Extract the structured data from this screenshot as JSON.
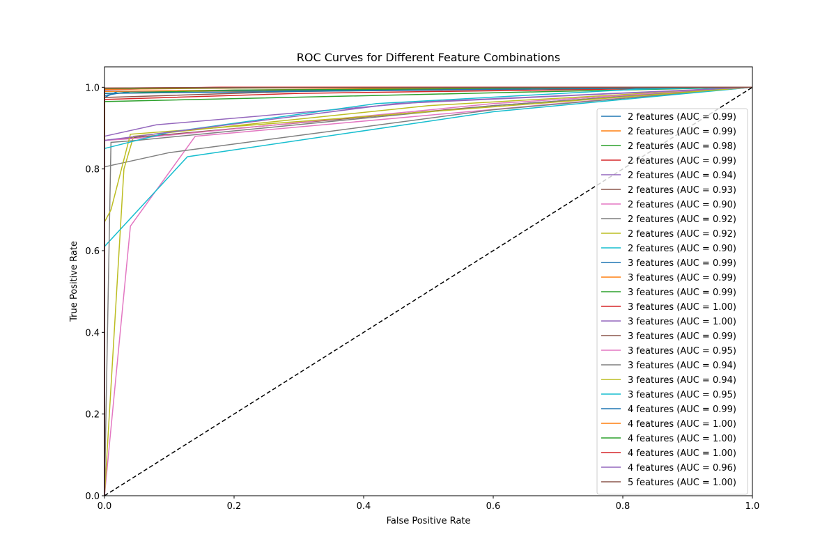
{
  "chart_data": {
    "type": "line",
    "title": "ROC Curves for Different Feature Combinations",
    "xlabel": "False Positive Rate",
    "ylabel": "True Positive Rate",
    "xlim": [
      0.0,
      1.0
    ],
    "ylim": [
      0.0,
      1.05
    ],
    "xticks": [
      "0.0",
      "0.2",
      "0.4",
      "0.6",
      "0.8",
      "1.0"
    ],
    "yticks": [
      "0.0",
      "0.2",
      "0.4",
      "0.6",
      "0.8",
      "1.0"
    ],
    "grid": false,
    "legend_position": "right",
    "reference_line": {
      "name": "chance",
      "x": [
        0,
        1
      ],
      "y": [
        0,
        1
      ],
      "color": "#000000",
      "style": "dashed"
    },
    "series": [
      {
        "name": "2 features (AUC = 0.99)",
        "color": "#1f77b4",
        "x": [
          0,
          0,
          0.02,
          1
        ],
        "y": [
          0,
          0.975,
          0.99,
          1
        ]
      },
      {
        "name": "2 features (AUC = 0.99)",
        "color": "#ff7f0e",
        "x": [
          0,
          0,
          0.5,
          1
        ],
        "y": [
          0,
          0.985,
          0.995,
          1
        ]
      },
      {
        "name": "2 features (AUC = 0.98)",
        "color": "#2ca02c",
        "x": [
          0,
          0,
          0.7,
          1
        ],
        "y": [
          0,
          0.965,
          0.99,
          1
        ]
      },
      {
        "name": "2 features (AUC = 0.99)",
        "color": "#d62728",
        "x": [
          0,
          0,
          0.3,
          1
        ],
        "y": [
          0,
          0.97,
          0.985,
          1
        ]
      },
      {
        "name": "2 features (AUC = 0.94)",
        "color": "#9467bd",
        "x": [
          0,
          0,
          0.08,
          0.5,
          1
        ],
        "y": [
          0,
          0.88,
          0.908,
          0.965,
          1
        ]
      },
      {
        "name": "2 features (AUC = 0.93)",
        "color": "#8c564b",
        "x": [
          0,
          0,
          0.03,
          0.6,
          1
        ],
        "y": [
          0,
          0.87,
          0.875,
          0.955,
          1
        ]
      },
      {
        "name": "2 features (AUC = 0.90)",
        "color": "#e377c2",
        "x": [
          0,
          0.04,
          0.14,
          0.7,
          1
        ],
        "y": [
          0,
          0.66,
          0.88,
          0.96,
          1
        ]
      },
      {
        "name": "2 features (AUC = 0.92)",
        "color": "#7f7f7f",
        "x": [
          0,
          0,
          0.1,
          0.6,
          1
        ],
        "y": [
          0,
          0.805,
          0.84,
          0.945,
          1
        ]
      },
      {
        "name": "2 features (AUC = 0.92)",
        "color": "#bcbd22",
        "x": [
          0,
          0.03,
          0.045,
          0.5,
          1
        ],
        "y": [
          0,
          0.8,
          0.88,
          0.955,
          1
        ]
      },
      {
        "name": "2 features (AUC = 0.90)",
        "color": "#17becf",
        "x": [
          0,
          0,
          0.128,
          0.6,
          1
        ],
        "y": [
          0,
          0.61,
          0.83,
          0.94,
          1
        ]
      },
      {
        "name": "3 features (AUC = 0.99)",
        "color": "#1f77b4",
        "x": [
          0,
          0,
          0.04,
          1
        ],
        "y": [
          0,
          0.98,
          0.99,
          1
        ]
      },
      {
        "name": "3 features (AUC = 0.99)",
        "color": "#ff7f0e",
        "x": [
          0,
          0,
          0.4,
          1
        ],
        "y": [
          0,
          0.99,
          0.996,
          1
        ]
      },
      {
        "name": "3 features (AUC = 0.99)",
        "color": "#2ca02c",
        "x": [
          0,
          0,
          0.2,
          1
        ],
        "y": [
          0,
          0.985,
          0.993,
          1
        ]
      },
      {
        "name": "3 features (AUC = 1.00)",
        "color": "#d62728",
        "x": [
          0,
          0,
          0.18,
          1
        ],
        "y": [
          0,
          0.995,
          1.0,
          1
        ]
      },
      {
        "name": "3 features (AUC = 1.00)",
        "color": "#9467bd",
        "x": [
          0,
          0,
          0.1,
          1
        ],
        "y": [
          0,
          0.993,
          0.998,
          1
        ]
      },
      {
        "name": "3 features (AUC = 0.99)",
        "color": "#8c564b",
        "x": [
          0,
          0,
          0.3,
          1
        ],
        "y": [
          0,
          0.975,
          0.99,
          1
        ]
      },
      {
        "name": "3 features (AUC = 0.95)",
        "color": "#e377c2",
        "x": [
          0,
          0,
          0.05,
          0.6,
          1
        ],
        "y": [
          0,
          0.87,
          0.875,
          0.96,
          1
        ]
      },
      {
        "name": "3 features (AUC = 0.94)",
        "color": "#7f7f7f",
        "x": [
          0,
          0.01,
          0.05,
          0.6,
          1
        ],
        "y": [
          0,
          0.865,
          0.87,
          0.955,
          1
        ]
      },
      {
        "name": "3 features (AUC = 0.94)",
        "color": "#bcbd22",
        "x": [
          0,
          0,
          0.01,
          0.04,
          1
        ],
        "y": [
          0,
          0.67,
          0.7,
          0.885,
          1
        ]
      },
      {
        "name": "3 features (AUC = 0.95)",
        "color": "#17becf",
        "x": [
          0,
          0,
          0.1,
          0.42,
          0.82,
          1
        ],
        "y": [
          0,
          0.85,
          0.89,
          0.96,
          0.995,
          1
        ]
      },
      {
        "name": "4 features (AUC = 0.99)",
        "color": "#1f77b4",
        "x": [
          0,
          0,
          0.6,
          1
        ],
        "y": [
          0,
          0.985,
          0.995,
          1
        ]
      },
      {
        "name": "4 features (AUC = 1.00)",
        "color": "#ff7f0e",
        "x": [
          0,
          0,
          0.2,
          1
        ],
        "y": [
          0,
          0.995,
          0.998,
          1
        ]
      },
      {
        "name": "4 features (AUC = 1.00)",
        "color": "#2ca02c",
        "x": [
          0,
          0,
          0.3,
          1
        ],
        "y": [
          0,
          0.997,
          0.999,
          1
        ]
      },
      {
        "name": "4 features (AUC = 1.00)",
        "color": "#d62728",
        "x": [
          0,
          0,
          0.2,
          1
        ],
        "y": [
          0,
          0.998,
          1.0,
          1
        ]
      },
      {
        "name": "4 features (AUC = 0.96)",
        "color": "#9467bd",
        "x": [
          0,
          0,
          0.1,
          0.45,
          1
        ],
        "y": [
          0,
          0.87,
          0.89,
          0.96,
          1
        ]
      },
      {
        "name": "5 features (AUC = 1.00)",
        "color": "#8c564b",
        "x": [
          0,
          0,
          0.1,
          1
        ],
        "y": [
          0,
          0.998,
          0.999,
          1
        ]
      }
    ]
  }
}
